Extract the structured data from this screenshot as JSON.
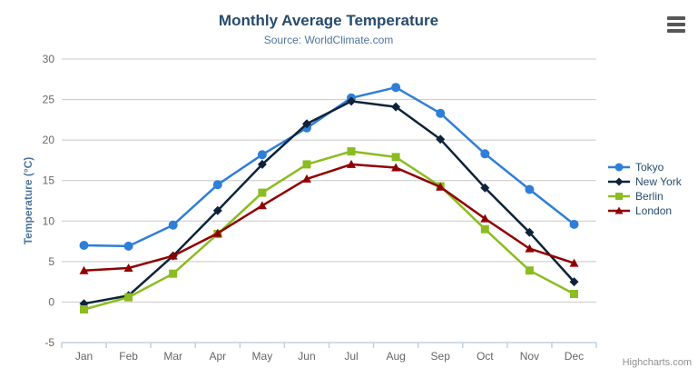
{
  "chart": {
    "title": "Monthly Average Temperature",
    "subtitle": "Source: WorldClimate.com",
    "y_axis_title": "Temperature (°C)",
    "credits": "Highcharts.com"
  },
  "chart_data": {
    "type": "line",
    "title": "Monthly Average Temperature",
    "subtitle": "Source: WorldClimate.com",
    "xlabel": "",
    "ylabel": "Temperature (°C)",
    "categories": [
      "Jan",
      "Feb",
      "Mar",
      "Apr",
      "May",
      "Jun",
      "Jul",
      "Aug",
      "Sep",
      "Oct",
      "Nov",
      "Dec"
    ],
    "series": [
      {
        "name": "Tokyo",
        "color": "#2f7ed8",
        "marker": "circle",
        "values": [
          7.0,
          6.9,
          9.5,
          14.5,
          18.2,
          21.5,
          25.2,
          26.5,
          23.3,
          18.3,
          13.9,
          9.6
        ]
      },
      {
        "name": "New York",
        "color": "#0d233a",
        "marker": "diamond",
        "values": [
          -0.2,
          0.8,
          5.7,
          11.3,
          17.0,
          22.0,
          24.8,
          24.1,
          20.1,
          14.1,
          8.6,
          2.5
        ]
      },
      {
        "name": "Berlin",
        "color": "#8bbc21",
        "marker": "square",
        "values": [
          -0.9,
          0.6,
          3.5,
          8.4,
          13.5,
          17.0,
          18.6,
          17.9,
          14.3,
          9.0,
          3.9,
          1.0
        ]
      },
      {
        "name": "London",
        "color": "#910000",
        "marker": "triangle",
        "values": [
          3.9,
          4.2,
          5.7,
          8.5,
          11.9,
          15.2,
          17.0,
          16.6,
          14.2,
          10.3,
          6.6,
          4.8
        ]
      }
    ],
    "ylim": [
      -5,
      30
    ],
    "y_tick_step": 5,
    "grid": true,
    "legend_position": "right-middle"
  },
  "colors": {
    "grid": "#c8c8c8",
    "axis_line": "#c0d0e0",
    "tick_label": "#666666",
    "title": "#274b6d",
    "subtitle": "#4d759e",
    "legend_text": "#274b6d",
    "credits": "#909090"
  }
}
